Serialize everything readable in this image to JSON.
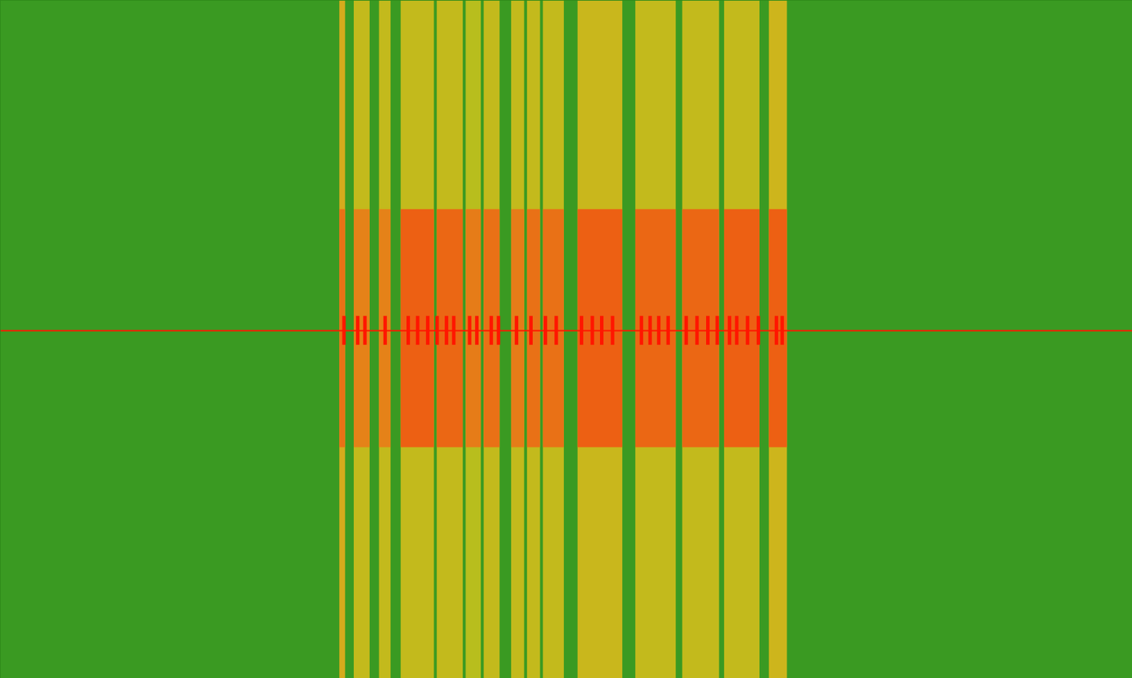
{
  "chart_data": {
    "type": "heatmap",
    "tick_labels": false,
    "grid": false,
    "xlim": [
      0,
      1568
    ],
    "ylim": [
      -470,
      470
    ],
    "zlim": [
      0,
      1
    ],
    "background": 0,
    "core_ylim": [
      -150,
      180
    ],
    "stripes": [
      {
        "x0": 470,
        "x1": 478,
        "value": 0.55,
        "core": 0.75
      },
      {
        "x0": 490,
        "x1": 512,
        "value": 0.45,
        "core": 0.7
      },
      {
        "x0": 525,
        "x1": 541,
        "value": 0.45,
        "core": 0.7
      },
      {
        "x0": 555,
        "x1": 601,
        "value": 0.45,
        "core": 0.8
      },
      {
        "x0": 605,
        "x1": 641,
        "value": 0.45,
        "core": 0.78
      },
      {
        "x0": 645,
        "x1": 666,
        "value": 0.4,
        "core": 0.72
      },
      {
        "x0": 670,
        "x1": 692,
        "value": 0.45,
        "core": 0.75
      },
      {
        "x0": 708,
        "x1": 726,
        "value": 0.45,
        "core": 0.72
      },
      {
        "x0": 730,
        "x1": 748,
        "value": 0.45,
        "core": 0.75
      },
      {
        "x0": 752,
        "x1": 781,
        "value": 0.45,
        "core": 0.75
      },
      {
        "x0": 800,
        "x1": 862,
        "value": 0.48,
        "core": 0.8
      },
      {
        "x0": 880,
        "x1": 936,
        "value": 0.45,
        "core": 0.78
      },
      {
        "x0": 945,
        "x1": 996,
        "value": 0.45,
        "core": 0.78
      },
      {
        "x0": 1003,
        "x1": 1052,
        "value": 0.45,
        "core": 0.8
      },
      {
        "x0": 1065,
        "x1": 1090,
        "value": 0.5,
        "core": 0.8
      }
    ],
    "carrier": {
      "y": 12,
      "value": 1
    },
    "pulse_ylim": [
      -8,
      32
    ],
    "pulses": [
      476,
      495,
      505,
      533,
      565,
      578,
      592,
      605,
      618,
      628,
      650,
      660,
      680,
      690,
      715,
      735,
      755,
      770,
      805,
      820,
      833,
      848,
      888,
      900,
      912,
      925,
      950,
      965,
      980,
      993,
      1010,
      1020,
      1035,
      1050,
      1075,
      1083
    ],
    "pulse_value": 1
  }
}
